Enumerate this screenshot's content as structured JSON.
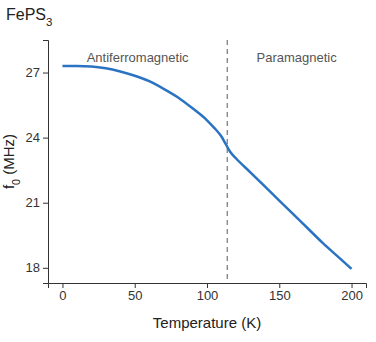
{
  "chart_data": {
    "type": "line",
    "title": "FePS3",
    "x_label": "Temperature (K)",
    "y_label": "f0 (MHz)",
    "x": [
      0,
      10,
      20,
      30,
      40,
      50,
      60,
      70,
      80,
      90,
      100,
      105,
      110,
      113,
      116,
      120,
      130,
      140,
      150,
      160,
      170,
      180,
      190,
      200
    ],
    "series": [
      {
        "name": "f0",
        "color": "#2a73c3",
        "values": [
          27.3,
          27.3,
          27.28,
          27.2,
          27.05,
          26.85,
          26.6,
          26.25,
          25.85,
          25.35,
          24.8,
          24.45,
          24.05,
          23.7,
          23.35,
          23.05,
          22.4,
          21.75,
          21.1,
          20.45,
          19.8,
          19.15,
          18.55,
          17.95
        ]
      }
    ],
    "xlim": [
      -10,
      210
    ],
    "xticks": [
      0,
      50,
      100,
      150,
      200
    ],
    "ylim": [
      17.3,
      28.5
    ],
    "yticks": [
      18,
      21,
      24,
      27
    ],
    "annotations": [
      "Antiferromagnetic",
      "Paramagnetic"
    ],
    "vline": 114,
    "grid": false
  }
}
